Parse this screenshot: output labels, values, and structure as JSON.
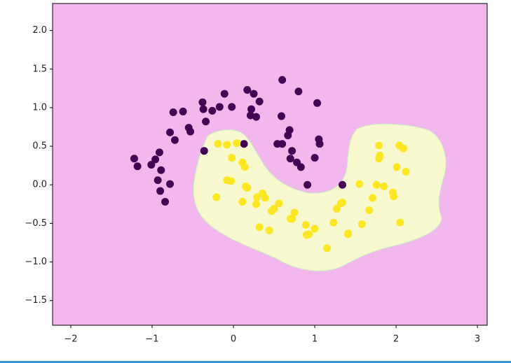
{
  "chart_data": {
    "type": "scatter",
    "xlim": [
      -2.224,
      3.12
    ],
    "ylim": [
      -1.82,
      2.35
    ],
    "xticks": [
      {
        "value": -2,
        "label": "−2"
      },
      {
        "value": -1,
        "label": "−1"
      },
      0,
      1,
      2,
      3
    ],
    "yticks": [
      {
        "value": -1.5,
        "label": "−1.5"
      },
      {
        "value": -1.0,
        "label": "−1.0"
      },
      {
        "value": -0.5,
        "label": "−0.5"
      },
      {
        "value": 0.0,
        "label": "0.0"
      },
      0.5,
      {
        "value": 1.0,
        "label": "1.0"
      },
      1.5,
      {
        "value": 2.0,
        "label": "2.0"
      }
    ],
    "background": "#f2b8ee",
    "region_color": "#f8f8cf",
    "series": [
      {
        "color": "#440154",
        "x": [
          -1.22,
          -1.18,
          -1.01,
          -0.96,
          -0.91,
          -0.89,
          -0.93,
          -0.9,
          -0.84,
          -0.78,
          -0.78,
          -0.72,
          -0.74,
          -0.62,
          -0.55,
          -0.53,
          -0.37,
          -0.38,
          -0.34,
          -0.36,
          -0.26,
          -0.17,
          -0.11,
          -0.02,
          0.13,
          0.17,
          0.25,
          0.22,
          0.21,
          0.28,
          0.32,
          0.6,
          0.59,
          0.8,
          0.69,
          0.67,
          0.54,
          0.6,
          0.72,
          0.7,
          0.78,
          0.83,
          1.0,
          1.03,
          1.05,
          1.06,
          0.91,
          1.34
        ],
        "y": [
          0.34,
          0.24,
          0.26,
          0.33,
          0.42,
          0.19,
          0.06,
          -0.08,
          -0.22,
          0.01,
          0.68,
          0.58,
          0.94,
          0.95,
          0.74,
          0.69,
          0.98,
          1.07,
          0.82,
          0.44,
          0.96,
          1.01,
          1.18,
          1.01,
          0.53,
          1.23,
          1.18,
          0.98,
          0.9,
          0.88,
          1.08,
          1.36,
          0.89,
          1.21,
          0.71,
          0.64,
          0.53,
          0.53,
          0.44,
          0.34,
          0.29,
          0.23,
          0.35,
          1.06,
          0.59,
          0.53,
          0.0,
          0.0
        ]
      },
      {
        "color": "#fde725",
        "x": [
          -0.19,
          -0.08,
          0.04,
          -0.02,
          0.11,
          0.14,
          -0.08,
          -0.03,
          0.15,
          0.17,
          -0.21,
          0.11,
          0.29,
          0.36,
          0.39,
          0.28,
          0.5,
          0.47,
          0.56,
          0.75,
          0.7,
          0.72,
          0.32,
          0.44,
          0.89,
          1.0,
          0.9,
          0.93,
          1.15,
          1.23,
          1.27,
          1.32,
          1.34,
          1.41,
          1.41,
          1.55,
          1.58,
          1.71,
          1.67,
          1.76,
          1.85,
          1.79,
          1.8,
          1.79,
          1.96,
          1.97,
          2.01,
          2.04,
          2.09,
          2.12,
          2.05
        ],
        "y": [
          0.53,
          0.52,
          0.54,
          0.35,
          0.29,
          0.23,
          0.06,
          0.05,
          -0.02,
          -0.04,
          -0.16,
          -0.22,
          -0.16,
          -0.11,
          -0.17,
          -0.25,
          -0.31,
          -0.34,
          -0.24,
          -0.36,
          -0.44,
          -0.44,
          -0.55,
          -0.59,
          -0.52,
          -0.57,
          -0.65,
          -0.64,
          -0.82,
          -0.49,
          -0.31,
          -0.24,
          -0.23,
          -0.64,
          -0.63,
          0.01,
          -0.51,
          -0.17,
          -0.33,
          0.0,
          -0.02,
          0.51,
          0.38,
          0.34,
          -0.1,
          -0.15,
          0.23,
          0.51,
          0.47,
          0.17,
          -0.49
        ]
      }
    ]
  }
}
